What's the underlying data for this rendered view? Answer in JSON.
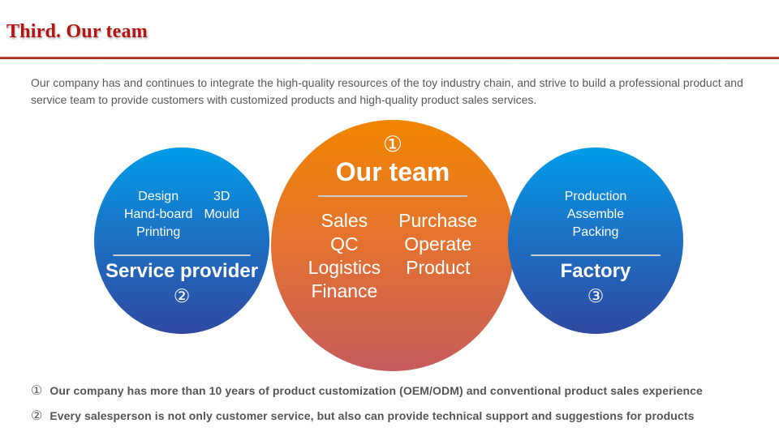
{
  "header": {
    "title": "Third. Our team"
  },
  "intro": {
    "text": "Our company has and continues to integrate the high-quality resources of the toy industry chain, and strive to build a professional product and service team to provide customers with customized products and high-quality product sales services."
  },
  "circles": {
    "left": {
      "col1": [
        "Design",
        "Hand-board",
        "Printing"
      ],
      "col2": [
        "3D",
        "Mould"
      ],
      "label": "Service provider",
      "number": "②"
    },
    "center": {
      "number": "①",
      "title": "Our team",
      "col1": [
        "Sales",
        "QC",
        "Logistics",
        "Finance"
      ],
      "col2": [
        "Purchase",
        "Operate",
        "Product"
      ]
    },
    "right": {
      "items": [
        "Production",
        "Assemble",
        "Packing"
      ],
      "label": "Factory",
      "number": "③"
    }
  },
  "footnotes": [
    {
      "number": "①",
      "text": "Our company has more than 10 years of product customization (OEM/ODM) and conventional product sales experience"
    },
    {
      "number": "②",
      "text": "Every salesperson is not only customer service, but also can provide technical support and suggestions for products"
    }
  ],
  "colors": {
    "title_red": "#b21512",
    "rule_red": "#c43527",
    "blue_top": "#009de9",
    "blue_bottom": "#2f49a0",
    "orange_top": "#f08500",
    "orange_bottom": "#c75b5c",
    "body_text_gray": "#595959",
    "footnote_gray": "#555555",
    "divider_gray": "#c9cdd1"
  }
}
